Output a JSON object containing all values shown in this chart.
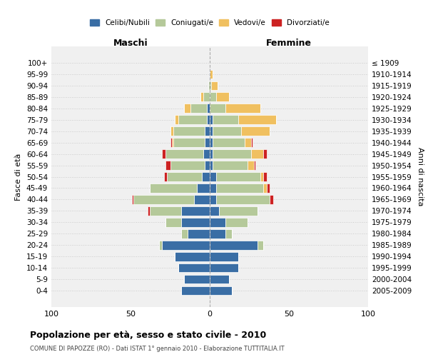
{
  "age_groups": [
    "0-4",
    "5-9",
    "10-14",
    "15-19",
    "20-24",
    "25-29",
    "30-34",
    "35-39",
    "40-44",
    "45-49",
    "50-54",
    "55-59",
    "60-64",
    "65-69",
    "70-74",
    "75-79",
    "80-84",
    "85-89",
    "90-94",
    "95-99",
    "100+"
  ],
  "birth_years": [
    "2005-2009",
    "2000-2004",
    "1995-1999",
    "1990-1994",
    "1985-1989",
    "1980-1984",
    "1975-1979",
    "1970-1974",
    "1965-1969",
    "1960-1964",
    "1955-1959",
    "1950-1954",
    "1945-1949",
    "1940-1944",
    "1935-1939",
    "1930-1934",
    "1925-1929",
    "1920-1924",
    "1915-1919",
    "1910-1914",
    "≤ 1909"
  ],
  "males": {
    "celibi": [
      18,
      16,
      20,
      22,
      30,
      14,
      18,
      18,
      10,
      8,
      5,
      3,
      4,
      3,
      3,
      2,
      2,
      0,
      0,
      0,
      0
    ],
    "coniugati": [
      0,
      0,
      0,
      0,
      2,
      4,
      10,
      20,
      38,
      30,
      22,
      22,
      24,
      20,
      20,
      18,
      10,
      4,
      1,
      0,
      0
    ],
    "vedovi": [
      0,
      0,
      0,
      0,
      0,
      0,
      0,
      0,
      0,
      0,
      0,
      0,
      0,
      1,
      2,
      2,
      4,
      2,
      0,
      0,
      0
    ],
    "divorziati": [
      0,
      0,
      0,
      0,
      0,
      0,
      0,
      1,
      1,
      0,
      2,
      3,
      2,
      1,
      0,
      0,
      0,
      0,
      0,
      0,
      0
    ]
  },
  "females": {
    "nubili": [
      14,
      12,
      18,
      18,
      30,
      10,
      10,
      6,
      4,
      4,
      4,
      2,
      2,
      2,
      2,
      2,
      0,
      0,
      0,
      0,
      0
    ],
    "coniugate": [
      0,
      0,
      0,
      0,
      4,
      4,
      14,
      24,
      34,
      30,
      28,
      22,
      24,
      20,
      18,
      16,
      10,
      4,
      1,
      0,
      0
    ],
    "vedove": [
      0,
      0,
      0,
      0,
      0,
      0,
      0,
      0,
      0,
      2,
      2,
      4,
      8,
      4,
      18,
      24,
      22,
      8,
      4,
      2,
      0
    ],
    "divorziate": [
      0,
      0,
      0,
      0,
      0,
      0,
      0,
      0,
      2,
      2,
      2,
      1,
      2,
      1,
      0,
      0,
      0,
      0,
      0,
      0,
      0
    ]
  },
  "colors": {
    "celibi": "#3a6ea5",
    "coniugati": "#b5c99a",
    "vedovi": "#f0c060",
    "divorziati": "#cc2222"
  },
  "legend_labels": [
    "Celibi/Nubili",
    "Coniugati/e",
    "Vedovi/e",
    "Divorziati/e"
  ],
  "title": "Popolazione per età, sesso e stato civile - 2010",
  "subtitle": "COMUNE DI PAPOZZE (RO) - Dati ISTAT 1° gennaio 2010 - Elaborazione TUTTITALIA.IT",
  "xlabel_left": "Maschi",
  "xlabel_right": "Femmine",
  "ylabel_left": "Fasce di età",
  "ylabel_right": "Anni di nascita",
  "xlim": 100,
  "background_color": "#ffffff",
  "grid_color": "#cccccc"
}
